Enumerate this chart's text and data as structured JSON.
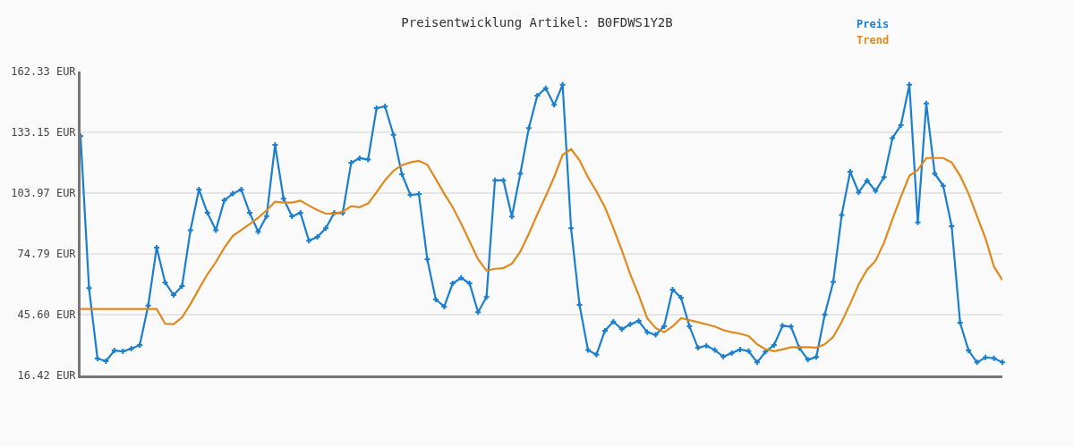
{
  "chart_data": {
    "type": "line",
    "title": "Preisentwicklung Artikel: B0FDWS1Y2B",
    "categories": [
      null,
      null,
      null,
      null,
      null,
      null,
      null,
      null,
      null,
      null,
      null,
      null,
      null,
      null,
      null,
      null,
      null,
      null,
      null,
      null,
      null,
      null,
      null,
      null,
      null,
      null,
      null,
      null,
      null,
      null,
      null,
      null,
      null,
      null,
      null,
      null,
      null,
      null,
      null,
      null,
      null,
      null,
      null,
      null,
      null,
      null,
      null,
      null,
      null,
      null,
      null,
      null,
      null,
      null,
      null,
      null,
      null,
      null,
      null,
      null,
      null,
      null,
      null,
      null,
      null,
      null,
      null,
      null,
      null,
      null,
      null,
      null,
      null,
      null,
      null,
      null,
      null,
      null,
      null,
      null,
      null,
      null,
      null,
      null,
      null,
      null,
      null,
      null,
      null,
      null,
      null,
      null,
      null,
      null,
      null,
      null,
      null,
      null,
      null,
      null,
      null,
      null,
      null,
      null,
      null,
      null,
      null,
      null,
      null,
      null
    ],
    "series": [
      {
        "name": "Preis",
        "color": "#1a7fce",
        "marker": "cross",
        "values": [
          131.3,
          58.4,
          24.6,
          23.3,
          28.4,
          28.0,
          29.3,
          31.0,
          50.0,
          77.8,
          61.1,
          55.0,
          59.3,
          86.2,
          105.7,
          94.5,
          86.2,
          100.5,
          103.7,
          105.7,
          94.5,
          85.4,
          92.9,
          127.1,
          101.3,
          92.8,
          94.5,
          81.1,
          82.9,
          87.1,
          94.5,
          94.4,
          118.6,
          120.7,
          120.1,
          144.7,
          145.6,
          132.0,
          113.0,
          103.1,
          103.5,
          72.2,
          52.9,
          49.5,
          60.6,
          63.3,
          60.6,
          46.8,
          54.1,
          110.1,
          110.1,
          92.7,
          113.3,
          135.2,
          150.7,
          154.3,
          146.3,
          156.0,
          87.1,
          50.3,
          28.6,
          26.4,
          37.9,
          42.3,
          38.6,
          41.0,
          42.6,
          37.2,
          35.9,
          40.0,
          57.6,
          53.8,
          40.0,
          29.7,
          30.7,
          28.6,
          25.4,
          27.2,
          28.9,
          28.1,
          22.7,
          27.9,
          31.0,
          40.3,
          39.9,
          29.6,
          24.0,
          25.3,
          45.7,
          61.4,
          93.5,
          114.3,
          104.3,
          110.0,
          105.0,
          111.6,
          130.4,
          136.6,
          156.0,
          89.9,
          147.0,
          113.3,
          107.5,
          88.1,
          41.7,
          28.4,
          22.7,
          25.1,
          24.7,
          22.7
        ]
      },
      {
        "name": "Trend",
        "color": "#e08a1e",
        "marker": "none",
        "values": [
          48.3,
          48.3,
          48.3,
          48.3,
          48.3,
          48.3,
          48.3,
          48.3,
          48.3,
          48.3,
          41.3,
          41.0,
          44.3,
          50.7,
          58.0,
          65.0,
          70.8,
          77.7,
          83.4,
          86.2,
          89.1,
          92.1,
          95.7,
          99.8,
          99.4,
          99.4,
          100.4,
          98.0,
          95.8,
          94.1,
          94.1,
          95.0,
          97.7,
          97.2,
          99.0,
          104.4,
          110.1,
          114.7,
          117.4,
          118.7,
          119.5,
          117.6,
          110.8,
          103.7,
          97.2,
          89.4,
          80.8,
          72.2,
          66.8,
          67.6,
          68.0,
          70.1,
          75.9,
          84.4,
          93.7,
          102.5,
          111.7,
          122.3,
          125.1,
          119.7,
          111.6,
          104.8,
          97.2,
          87.2,
          76.5,
          65.0,
          55.0,
          43.9,
          39.2,
          37.2,
          40.0,
          43.9,
          43.0,
          42.0,
          41.0,
          39.9,
          38.2,
          37.2,
          36.5,
          35.3,
          31.4,
          29.0,
          28.1,
          28.9,
          30.0,
          30.0,
          30.0,
          29.8,
          31.4,
          35.0,
          42.2,
          50.8,
          60.1,
          67.2,
          71.5,
          80.1,
          91.5,
          102.2,
          112.3,
          115.1,
          120.8,
          120.8,
          120.8,
          118.7,
          112.3,
          103.7,
          92.9,
          82.2,
          68.7,
          62.2
        ]
      }
    ],
    "ylim": [
      16.42,
      162.33
    ],
    "yticks": [
      {
        "value": 16.42,
        "label": "16.42 EUR"
      },
      {
        "value": 45.6,
        "label": "45.60 EUR"
      },
      {
        "value": 74.79,
        "label": "74.79 EUR"
      },
      {
        "value": 103.97,
        "label": "103.97 EUR"
      },
      {
        "value": 133.15,
        "label": "133.15 EUR"
      },
      {
        "value": 162.33,
        "label": "162.33 EUR"
      }
    ],
    "grid": "y",
    "legend": "top right",
    "tick_labels": "y",
    "line_style": "solid"
  }
}
